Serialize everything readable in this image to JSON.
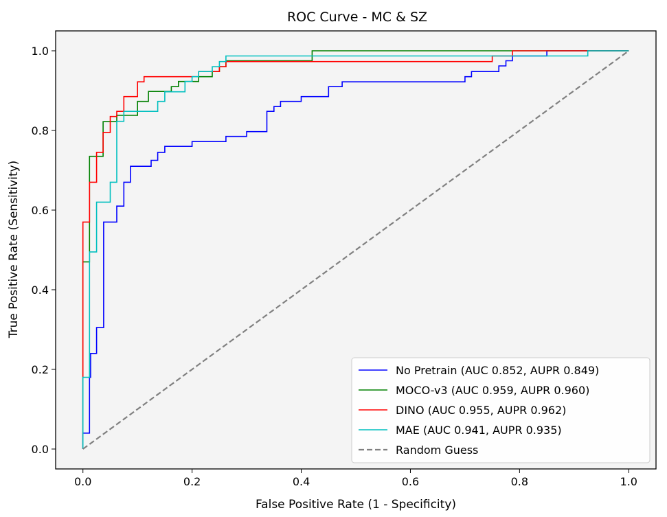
{
  "chart_data": {
    "type": "line",
    "title": "ROC Curve - MC & SZ",
    "xlabel": "False Positive Rate (1 - Specificity)",
    "ylabel": "True Positive Rate (Sensitivity)",
    "xlim": [
      -0.05,
      1.05
    ],
    "ylim": [
      -0.05,
      1.05
    ],
    "xticks": [
      0.0,
      0.2,
      0.4,
      0.6,
      0.8,
      1.0
    ],
    "yticks": [
      0.0,
      0.2,
      0.4,
      0.6,
      0.8,
      1.0
    ],
    "tick_labels": [
      "0.0",
      "0.2",
      "0.4",
      "0.6",
      "0.8",
      "1.0"
    ],
    "grid": false,
    "legend_position": "bottom-right",
    "background": "#f4f4f4",
    "series": [
      {
        "name": "No Pretrain (AUC 0.852, AUPR 0.849)",
        "color": "#0000ff",
        "style": "solid",
        "points": [
          [
            0,
            0
          ],
          [
            0,
            0.04
          ],
          [
            0.012,
            0.04
          ],
          [
            0.012,
            0.18
          ],
          [
            0.014,
            0.18
          ],
          [
            0.014,
            0.24
          ],
          [
            0.025,
            0.24
          ],
          [
            0.025,
            0.305
          ],
          [
            0.038,
            0.305
          ],
          [
            0.038,
            0.57
          ],
          [
            0.062,
            0.57
          ],
          [
            0.062,
            0.61
          ],
          [
            0.075,
            0.61
          ],
          [
            0.075,
            0.67
          ],
          [
            0.087,
            0.67
          ],
          [
            0.087,
            0.71
          ],
          [
            0.125,
            0.71
          ],
          [
            0.125,
            0.725
          ],
          [
            0.137,
            0.725
          ],
          [
            0.137,
            0.745
          ],
          [
            0.15,
            0.745
          ],
          [
            0.15,
            0.76
          ],
          [
            0.2,
            0.76
          ],
          [
            0.2,
            0.772
          ],
          [
            0.262,
            0.772
          ],
          [
            0.262,
            0.785
          ],
          [
            0.3,
            0.785
          ],
          [
            0.3,
            0.797
          ],
          [
            0.337,
            0.797
          ],
          [
            0.337,
            0.848
          ],
          [
            0.35,
            0.848
          ],
          [
            0.35,
            0.86
          ],
          [
            0.362,
            0.86
          ],
          [
            0.362,
            0.873
          ],
          [
            0.4,
            0.873
          ],
          [
            0.4,
            0.885
          ],
          [
            0.45,
            0.885
          ],
          [
            0.45,
            0.91
          ],
          [
            0.475,
            0.91
          ],
          [
            0.475,
            0.922
          ],
          [
            0.7,
            0.922
          ],
          [
            0.7,
            0.935
          ],
          [
            0.712,
            0.935
          ],
          [
            0.712,
            0.948
          ],
          [
            0.762,
            0.948
          ],
          [
            0.762,
            0.962
          ],
          [
            0.775,
            0.962
          ],
          [
            0.775,
            0.975
          ],
          [
            0.787,
            0.975
          ],
          [
            0.787,
            0.987
          ],
          [
            0.85,
            0.987
          ],
          [
            0.85,
            1.0
          ],
          [
            1.0,
            1.0
          ]
        ]
      },
      {
        "name": "MOCO-v3 (AUC 0.959, AUPR 0.960)",
        "color": "#008000",
        "style": "solid",
        "points": [
          [
            0,
            0
          ],
          [
            0,
            0.47
          ],
          [
            0.012,
            0.47
          ],
          [
            0.012,
            0.5
          ],
          [
            0.012,
            0.735
          ],
          [
            0.037,
            0.735
          ],
          [
            0.037,
            0.822
          ],
          [
            0.062,
            0.822
          ],
          [
            0.062,
            0.838
          ],
          [
            0.1,
            0.838
          ],
          [
            0.1,
            0.873
          ],
          [
            0.12,
            0.873
          ],
          [
            0.12,
            0.898
          ],
          [
            0.162,
            0.898
          ],
          [
            0.162,
            0.91
          ],
          [
            0.175,
            0.91
          ],
          [
            0.175,
            0.923
          ],
          [
            0.212,
            0.923
          ],
          [
            0.212,
            0.935
          ],
          [
            0.237,
            0.935
          ],
          [
            0.237,
            0.948
          ],
          [
            0.25,
            0.948
          ],
          [
            0.25,
            0.96
          ],
          [
            0.262,
            0.96
          ],
          [
            0.262,
            0.975
          ],
          [
            0.42,
            0.975
          ],
          [
            0.42,
            1.0
          ],
          [
            1.0,
            1.0
          ]
        ]
      },
      {
        "name": "DINO (AUC 0.955, AUPR 0.962)",
        "color": "#ff0000",
        "style": "solid",
        "points": [
          [
            0,
            0
          ],
          [
            0,
            0.57
          ],
          [
            0.012,
            0.57
          ],
          [
            0.012,
            0.67
          ],
          [
            0.025,
            0.67
          ],
          [
            0.025,
            0.745
          ],
          [
            0.037,
            0.745
          ],
          [
            0.037,
            0.795
          ],
          [
            0.05,
            0.795
          ],
          [
            0.05,
            0.835
          ],
          [
            0.062,
            0.835
          ],
          [
            0.062,
            0.848
          ],
          [
            0.075,
            0.848
          ],
          [
            0.075,
            0.885
          ],
          [
            0.1,
            0.885
          ],
          [
            0.1,
            0.922
          ],
          [
            0.112,
            0.922
          ],
          [
            0.112,
            0.935
          ],
          [
            0.212,
            0.935
          ],
          [
            0.212,
            0.948
          ],
          [
            0.25,
            0.948
          ],
          [
            0.25,
            0.96
          ],
          [
            0.262,
            0.96
          ],
          [
            0.262,
            0.973
          ],
          [
            0.75,
            0.973
          ],
          [
            0.75,
            0.987
          ],
          [
            0.787,
            0.987
          ],
          [
            0.787,
            1.0
          ],
          [
            1.0,
            1.0
          ]
        ]
      },
      {
        "name": "MAE (AUC 0.941, AUPR 0.935)",
        "color": "#00bfbf",
        "style": "solid",
        "points": [
          [
            0,
            0
          ],
          [
            0,
            0.18
          ],
          [
            0.012,
            0.18
          ],
          [
            0.012,
            0.495
          ],
          [
            0.025,
            0.495
          ],
          [
            0.025,
            0.62
          ],
          [
            0.05,
            0.62
          ],
          [
            0.05,
            0.67
          ],
          [
            0.062,
            0.67
          ],
          [
            0.062,
            0.823
          ],
          [
            0.075,
            0.823
          ],
          [
            0.075,
            0.848
          ],
          [
            0.137,
            0.848
          ],
          [
            0.137,
            0.873
          ],
          [
            0.15,
            0.873
          ],
          [
            0.15,
            0.897
          ],
          [
            0.187,
            0.897
          ],
          [
            0.187,
            0.923
          ],
          [
            0.2,
            0.923
          ],
          [
            0.2,
            0.935
          ],
          [
            0.212,
            0.935
          ],
          [
            0.212,
            0.948
          ],
          [
            0.237,
            0.948
          ],
          [
            0.237,
            0.96
          ],
          [
            0.25,
            0.96
          ],
          [
            0.25,
            0.973
          ],
          [
            0.262,
            0.973
          ],
          [
            0.262,
            0.987
          ],
          [
            0.925,
            0.987
          ],
          [
            0.925,
            1.0
          ],
          [
            1.0,
            1.0
          ]
        ]
      },
      {
        "name": "Random Guess",
        "color": "#808080",
        "style": "dashed",
        "points": [
          [
            0,
            0
          ],
          [
            1,
            1
          ]
        ]
      }
    ]
  }
}
